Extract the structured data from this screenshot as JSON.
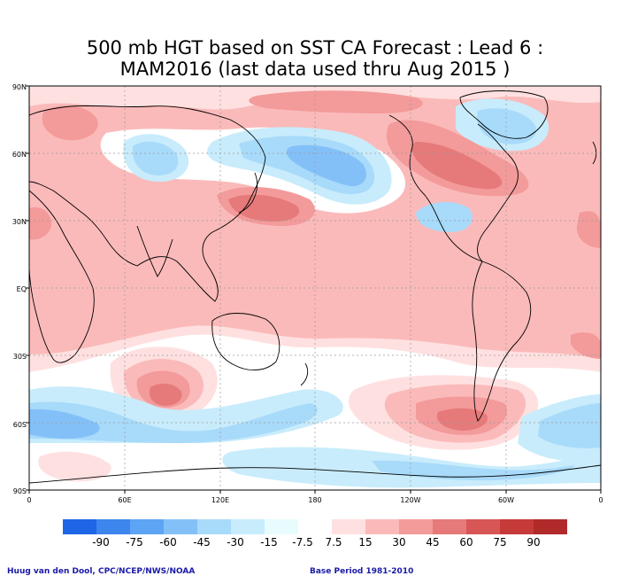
{
  "title": {
    "line1": "500 mb HGT based on SST CA Forecast : Lead 6 :",
    "line2": "MAM2016 (last data used thru Aug 2015 )"
  },
  "axes": {
    "lat_labels": [
      "90N",
      "60N",
      "30N",
      "EQ",
      "30S",
      "60S",
      "90S"
    ],
    "lon_labels": [
      "0",
      "60E",
      "120E",
      "180",
      "120W",
      "60W",
      "0"
    ]
  },
  "colorbar": {
    "labels": [
      "-90",
      "-75",
      "-60",
      "-45",
      "-30",
      "-15",
      "-7.5",
      "7.5",
      "15",
      "30",
      "45",
      "60",
      "75",
      "90"
    ],
    "colors": [
      "#1f66e6",
      "#3c86ee",
      "#5ea4f4",
      "#84c0f8",
      "#a8dafa",
      "#c8ecfb",
      "#e8fbfd",
      "#ffffff",
      "#ffe0e0",
      "#fbbaba",
      "#f39a9a",
      "#e67a7a",
      "#d85656",
      "#c63a3a",
      "#b02a2a"
    ]
  },
  "footer": {
    "left": "Huug van den Dool, CPC/NCEP/NWS/NOAA",
    "right": "Base Period 1981-2010"
  }
}
